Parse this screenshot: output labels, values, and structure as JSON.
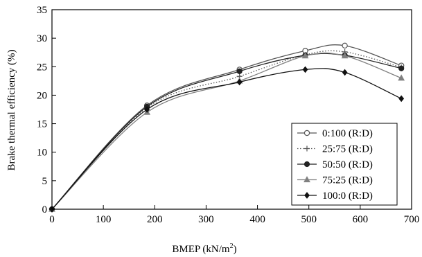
{
  "chart_data": {
    "type": "line",
    "title": "",
    "xlabel": "BMEP (kN/m",
    "xlabel_sup": "2",
    "xlabel_tail": ")",
    "ylabel": "Brake thermal efficiency (%)",
    "xlim": [
      0,
      700
    ],
    "ylim": [
      0,
      35
    ],
    "xticks": [
      "0",
      "100",
      "200",
      "300",
      "400",
      "500",
      "600",
      "700"
    ],
    "yticks": [
      "0",
      "5",
      "10",
      "15",
      "20",
      "25",
      "30",
      "35"
    ],
    "grid": false,
    "legend_position": "bottom-right",
    "series": [
      {
        "name": "0:100 (R:D)",
        "marker": "open-circle",
        "line_style": "solid",
        "color": "#555555",
        "x": [
          0,
          185,
          365,
          493,
          570,
          680
        ],
        "y": [
          0,
          18.2,
          24.5,
          27.8,
          28.7,
          25.2
        ]
      },
      {
        "name": "25:75 (R:D)",
        "marker": "plus",
        "line_style": "dotted",
        "color": "#555555",
        "x": [
          0,
          185,
          365,
          493,
          570,
          680
        ],
        "y": [
          0,
          17.8,
          23.3,
          27.1,
          27.6,
          24.9
        ]
      },
      {
        "name": "50:50 (R:D)",
        "marker": "filled-circle",
        "line_style": "solid",
        "color": "#222222",
        "x": [
          0,
          185,
          365,
          493,
          570,
          680
        ],
        "y": [
          0,
          18.0,
          24.2,
          27.0,
          27.0,
          24.7
        ]
      },
      {
        "name": "75:25 (R:D)",
        "marker": "filled-triangle",
        "line_style": "solid",
        "color": "#808080",
        "x": [
          0,
          185,
          365,
          493,
          570,
          680
        ],
        "y": [
          0,
          17.0,
          22.5,
          26.9,
          26.9,
          23.0
        ]
      },
      {
        "name": "100:0 (R:D)",
        "marker": "filled-diamond",
        "line_style": "solid",
        "color": "#111111",
        "x": [
          0,
          185,
          365,
          493,
          570,
          680
        ],
        "y": [
          0,
          17.5,
          22.3,
          24.5,
          24.0,
          19.4
        ]
      }
    ]
  }
}
